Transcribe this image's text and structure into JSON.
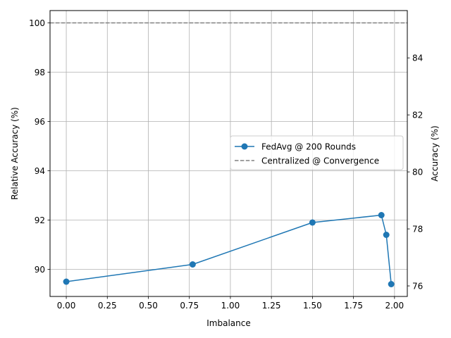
{
  "chart_data": {
    "type": "line",
    "xlabel": "Imbalance",
    "ylabel": "Relative Accuracy (%)",
    "ylabel_right": "Accuracy (%)",
    "xlim": [
      -0.099,
      2.078
    ],
    "ylim": [
      88.9,
      100.5
    ],
    "ylim_right": [
      75.63,
      85.66
    ],
    "x_ticks": [
      0.0,
      0.25,
      0.5,
      0.75,
      1.0,
      1.25,
      1.5,
      1.75,
      2.0
    ],
    "x_tick_labels": [
      "0.00",
      "0.25",
      "0.50",
      "0.75",
      "1.00",
      "1.25",
      "1.50",
      "1.75",
      "2.00"
    ],
    "y_ticks": [
      90,
      92,
      94,
      96,
      98,
      100
    ],
    "y_tick_labels": [
      "90",
      "92",
      "94",
      "96",
      "98",
      "100"
    ],
    "y_right_ticks": [
      76,
      78,
      80,
      82,
      84
    ],
    "y_right_tick_labels": [
      "76",
      "78",
      "80",
      "82",
      "84"
    ],
    "grid": true,
    "legend_position": "center-right",
    "series": [
      {
        "name": "FedAvg @ 200 Rounds",
        "style": "solid-marker",
        "color": "#1f77b4",
        "x": [
          0.0,
          0.77,
          1.5,
          1.92,
          1.95,
          1.98
        ],
        "y": [
          89.5,
          90.2,
          91.9,
          92.2,
          91.4,
          89.4
        ]
      },
      {
        "name": "Centralized @ Convergence",
        "style": "dashed",
        "color": "#808080",
        "y": 100.0
      }
    ]
  }
}
